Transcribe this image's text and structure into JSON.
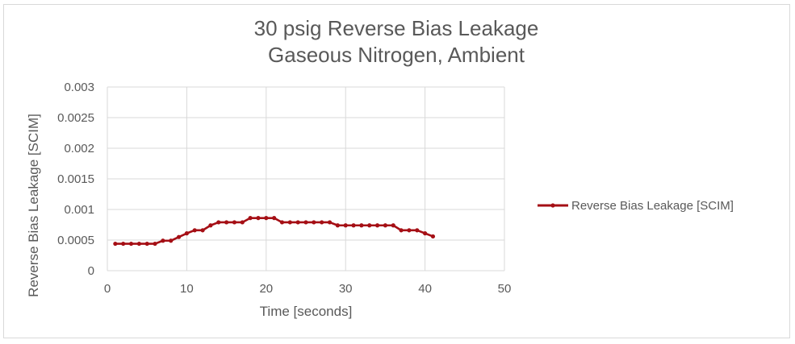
{
  "chart_data": {
    "type": "line",
    "title_line1": "30 psig Reverse Bias Leakage",
    "title_line2": "Gaseous Nitrogen, Ambient",
    "xlabel": "Time [seconds]",
    "ylabel": "Reverse Bias Leakage [SCIM]",
    "xlim": [
      0,
      50
    ],
    "ylim": [
      0,
      0.003
    ],
    "x_ticks": [
      "0",
      "10",
      "20",
      "30",
      "40",
      "50"
    ],
    "y_ticks": [
      "0",
      "0.0005",
      "0.001",
      "0.0015",
      "0.002",
      "0.0025",
      "0.003"
    ],
    "grid": true,
    "legend_position": "right",
    "series_color": "#a50f15",
    "series": [
      {
        "name": "Reverse Bias Leakage [SCIM]",
        "x": [
          1,
          2,
          3,
          4,
          5,
          6,
          7,
          8,
          9,
          10,
          11,
          12,
          13,
          14,
          15,
          16,
          17,
          18,
          19,
          20,
          21,
          22,
          23,
          24,
          25,
          26,
          27,
          28,
          29,
          30,
          31,
          32,
          33,
          34,
          35,
          36,
          37,
          38,
          39,
          40,
          41
        ],
        "y": [
          0.00044,
          0.00044,
          0.00044,
          0.00044,
          0.00044,
          0.00044,
          0.00049,
          0.00049,
          0.00055,
          0.00061,
          0.00066,
          0.00066,
          0.00074,
          0.00079,
          0.00079,
          0.00079,
          0.00079,
          0.00086,
          0.00086,
          0.00086,
          0.00086,
          0.00079,
          0.00079,
          0.00079,
          0.00079,
          0.00079,
          0.00079,
          0.00079,
          0.00074,
          0.00074,
          0.00074,
          0.00074,
          0.00074,
          0.00074,
          0.00074,
          0.00074,
          0.00066,
          0.00066,
          0.00066,
          0.00061,
          0.00056
        ]
      }
    ]
  }
}
